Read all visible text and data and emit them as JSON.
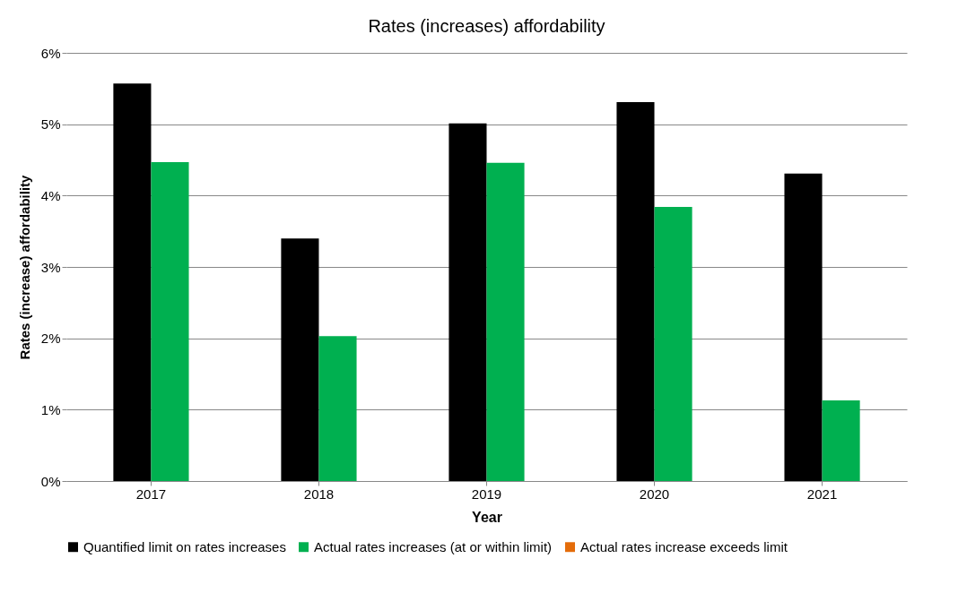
{
  "chart_data": {
    "type": "bar",
    "title": "Rates (increases) affordability",
    "xlabel": "Year",
    "ylabel": "Rates (increase) affordability",
    "categories": [
      "2017",
      "2018",
      "2019",
      "2020",
      "2021"
    ],
    "series": [
      {
        "name": "Quantified limit on rates increases",
        "color": "#000000",
        "values": [
          5.57,
          3.4,
          5.01,
          5.31,
          4.31
        ]
      },
      {
        "name": "Actual rates increases (at or within limit)",
        "color": "#00b050",
        "values": [
          4.47,
          2.03,
          4.46,
          3.84,
          1.13
        ]
      },
      {
        "name": "Actual rates increase exceeds limit",
        "color": "#e46c0a",
        "values": [
          null,
          null,
          null,
          null,
          null
        ]
      }
    ],
    "ylim": [
      0,
      6
    ],
    "yticks": [
      {
        "value": 0,
        "label": "0%"
      },
      {
        "value": 1,
        "label": "1%"
      },
      {
        "value": 2,
        "label": "2%"
      },
      {
        "value": 3,
        "label": "3%"
      },
      {
        "value": 4,
        "label": "4%"
      },
      {
        "value": 5,
        "label": "5%"
      },
      {
        "value": 6,
        "label": "6%"
      }
    ],
    "grid": "y",
    "legend": "bottom"
  }
}
